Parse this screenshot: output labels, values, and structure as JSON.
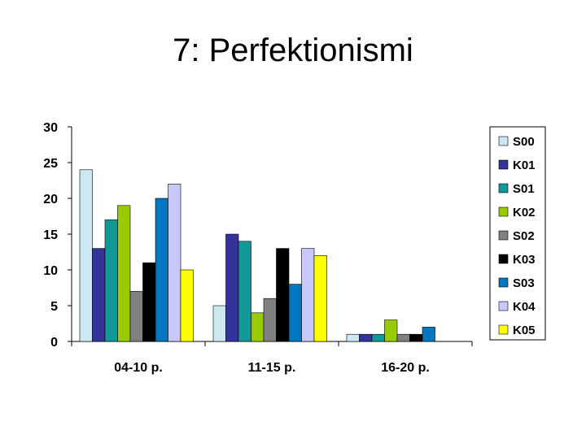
{
  "title": "7: Perfektionismi",
  "chart_data": {
    "type": "bar",
    "title": "7: Perfektionismi",
    "xlabel": "",
    "ylabel": "",
    "ylim": [
      0,
      30
    ],
    "yticks": [
      0,
      5,
      10,
      15,
      20,
      25,
      30
    ],
    "categories": [
      "04-10 p.",
      "11-15 p.",
      "16-20 p."
    ],
    "legend_position": "right",
    "grid": false,
    "series": [
      {
        "name": "S00",
        "color": "#cce8f0",
        "values": [
          24,
          5,
          1
        ]
      },
      {
        "name": "K01",
        "color": "#333399",
        "values": [
          13,
          15,
          1
        ]
      },
      {
        "name": "S01",
        "color": "#119999",
        "values": [
          17,
          14,
          1
        ]
      },
      {
        "name": "K02",
        "color": "#99cc00",
        "values": [
          19,
          4,
          3
        ]
      },
      {
        "name": "S02",
        "color": "#808080",
        "values": [
          7,
          6,
          1
        ]
      },
      {
        "name": "K03",
        "color": "#000000",
        "values": [
          11,
          13,
          1
        ]
      },
      {
        "name": "S03",
        "color": "#0077c0",
        "values": [
          20,
          8,
          2
        ]
      },
      {
        "name": "K04",
        "color": "#c8c8ff",
        "values": [
          22,
          13,
          0
        ]
      },
      {
        "name": "K05",
        "color": "#ffff00",
        "values": [
          10,
          12,
          0
        ]
      }
    ]
  }
}
